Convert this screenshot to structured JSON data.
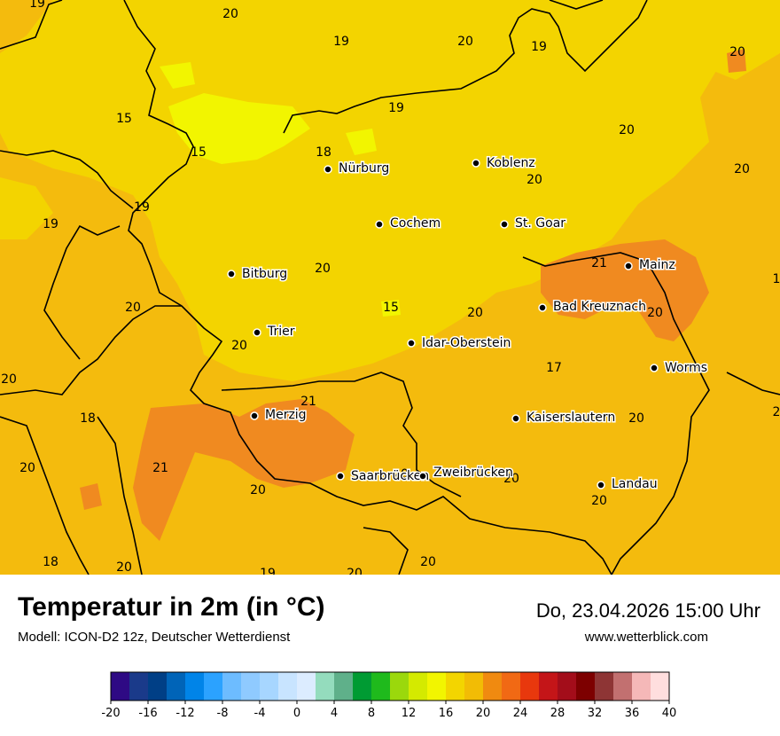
{
  "title": "Temperatur in 2m (in °C)",
  "subtitle": "Modell: ICON-D2 12z, Deutscher Wetterdienst",
  "datetime": "Do, 23.04.2026 15:00 Uhr",
  "website": "www.wetterblick.com",
  "cities": [
    {
      "name": "Nürburg"
    },
    {
      "name": "Koblenz"
    },
    {
      "name": "Cochem"
    },
    {
      "name": "St. Goar"
    },
    {
      "name": "Bitburg"
    },
    {
      "name": "Mainz"
    },
    {
      "name": "Bad Kreuznach"
    },
    {
      "name": "Trier"
    },
    {
      "name": "Idar-Oberstein"
    },
    {
      "name": "Worms"
    },
    {
      "name": "Merzig"
    },
    {
      "name": "Kaiserslautern"
    },
    {
      "name": "Saarbrücken"
    },
    {
      "name": "Zweibrücken"
    },
    {
      "name": "Landau"
    }
  ],
  "temperature_values": [
    {
      "value": "19"
    },
    {
      "value": "20"
    },
    {
      "value": "19"
    },
    {
      "value": "20"
    },
    {
      "value": "19"
    },
    {
      "value": "20"
    },
    {
      "value": "15"
    },
    {
      "value": "19"
    },
    {
      "value": "20"
    },
    {
      "value": "15"
    },
    {
      "value": "18"
    },
    {
      "value": "20"
    },
    {
      "value": "20"
    },
    {
      "value": "19"
    },
    {
      "value": "19"
    },
    {
      "value": "21"
    },
    {
      "value": "20"
    },
    {
      "value": "1"
    },
    {
      "value": "20"
    },
    {
      "value": "15"
    },
    {
      "value": "20"
    },
    {
      "value": "20"
    },
    {
      "value": "20"
    },
    {
      "value": "17"
    },
    {
      "value": "20"
    },
    {
      "value": "21"
    },
    {
      "value": "18"
    },
    {
      "value": "20"
    },
    {
      "value": "2"
    },
    {
      "value": "21"
    },
    {
      "value": "20"
    },
    {
      "value": "20"
    },
    {
      "value": "20"
    },
    {
      "value": "20"
    },
    {
      "value": "20"
    },
    {
      "value": "18"
    },
    {
      "value": "20"
    },
    {
      "value": "19"
    },
    {
      "value": "20"
    },
    {
      "value": "20"
    }
  ],
  "legend": {
    "colors": [
      "#2e0a84",
      "#1a3a8a",
      "#003f86",
      "#0064b8",
      "#0084e8",
      "#2ba2ff",
      "#6dbcff",
      "#8fcaff",
      "#a7d6ff",
      "#c8e4ff",
      "#dcecff",
      "#94dcbd",
      "#5fb08a",
      "#009b33",
      "#1fba1c",
      "#9bd80c",
      "#d4ea00",
      "#f2f500",
      "#f3d500",
      "#f2bc05",
      "#f08a10",
      "#f16914",
      "#e8380d",
      "#c41518",
      "#a30d1a",
      "#7d0000",
      "#8e3535",
      "#c27070",
      "#f5b8b8",
      "#ffdede"
    ],
    "tick_labels": [
      "-20",
      "-16",
      "-12",
      "-8",
      "-4",
      "0",
      "4",
      "8",
      "12",
      "16",
      "20",
      "24",
      "28",
      "32",
      "36",
      "40"
    ]
  },
  "map_colors": {
    "base": "#f4bb0d",
    "mild": "#f3d500",
    "cool": "#f2f500",
    "warm": "#f08a20",
    "border": "#000000"
  }
}
